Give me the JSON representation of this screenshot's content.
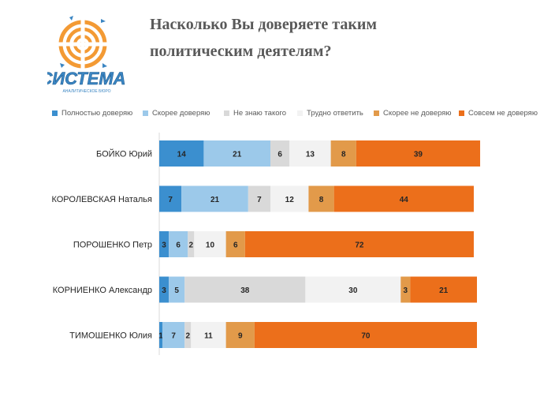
{
  "title_lines": [
    "Насколько Вы доверяете таким",
    "политическим деятелям?"
  ],
  "logo": {
    "name": "СИСТЕМА",
    "tagline": "АНАЛИТИЧЕСКОЕ БЮРО",
    "colors": {
      "orange": "#f39a34",
      "blue": "#3b86c3"
    }
  },
  "chart_data": {
    "type": "bar",
    "orientation": "horizontal",
    "stacked": true,
    "categories": [
      "БОЙКО Юрий",
      "КОРОЛЕВСКАЯ Наталья",
      "ПОРОШЕНКО Петр",
      "КОРНИЕНКО Александр",
      "ТИМОШЕНКО Юлия"
    ],
    "series": [
      {
        "name": "Полностью доверяю",
        "color": "#3b8fcf",
        "values": [
          14,
          7,
          3,
          3,
          1
        ]
      },
      {
        "name": "Скорее доверяю",
        "color": "#9cc9ea",
        "values": [
          21,
          21,
          6,
          5,
          7
        ]
      },
      {
        "name": "Не знаю такого",
        "color": "#d9d9d9",
        "values": [
          6,
          7,
          2,
          38,
          2
        ]
      },
      {
        "name": "Трудно ответить",
        "color": "#f2f2f2",
        "values": [
          13,
          12,
          10,
          30,
          11
        ]
      },
      {
        "name": "Скорее не доверяю",
        "color": "#e29a4a",
        "values": [
          8,
          8,
          6,
          3,
          9
        ]
      },
      {
        "name": "Совсем не доверяю",
        "color": "#ec6f1b",
        "values": [
          39,
          44,
          72,
          21,
          70
        ]
      }
    ],
    "xlim": [
      0,
      100
    ],
    "legend_position": "top",
    "grid": false
  }
}
